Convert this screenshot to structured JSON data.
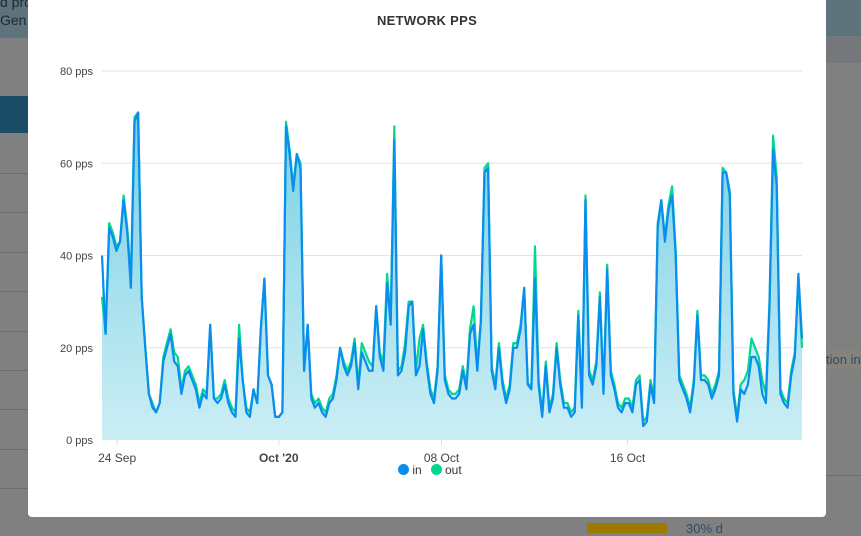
{
  "background": {
    "header_lines": [
      "d pro",
      "Gen"
    ],
    "right_text": "tion int",
    "bottom_text": "30% d"
  },
  "chart_data": {
    "type": "area",
    "title": "NETWORK PPS",
    "xlabel": "",
    "ylabel": "",
    "ylim": [
      0,
      80
    ],
    "xlim_days": [
      0,
      30.1
    ],
    "y_ticks": [
      {
        "value": 0,
        "label": "0 pps"
      },
      {
        "value": 20,
        "label": "20 pps"
      },
      {
        "value": 40,
        "label": "40 pps"
      },
      {
        "value": 60,
        "label": "60 pps"
      },
      {
        "value": 80,
        "label": "80 pps"
      }
    ],
    "x_ticks": [
      {
        "day": 0.65,
        "label": "24 Sep",
        "bold": false
      },
      {
        "day": 7.6,
        "label": "Oct '20",
        "bold": true
      },
      {
        "day": 14.6,
        "label": "08 Oct",
        "bold": false
      },
      {
        "day": 22.6,
        "label": "16 Oct",
        "bold": false
      }
    ],
    "grid": true,
    "legend_position": "bottom-center",
    "series": [
      {
        "name": "out",
        "color": "#00d98b",
        "values": [
          31,
          23,
          47,
          45,
          42,
          43,
          53,
          46,
          35,
          70,
          71,
          31,
          20,
          10,
          8,
          6,
          8,
          18,
          21,
          24,
          19,
          18,
          11,
          15,
          16,
          14,
          12,
          8,
          11,
          10,
          25,
          9,
          9,
          10,
          13,
          9,
          7,
          6,
          25,
          13,
          7,
          6,
          11,
          8,
          24,
          35,
          14,
          12,
          5,
          5,
          6,
          69,
          63,
          55,
          62,
          60,
          15,
          25,
          10,
          8,
          9,
          7,
          6,
          9,
          10,
          14,
          20,
          17,
          15,
          17,
          22,
          12,
          21,
          19,
          17,
          16,
          29,
          19,
          17,
          36,
          26,
          68,
          15,
          16,
          21,
          30,
          30,
          15,
          22,
          25,
          17,
          11,
          9,
          16,
          40,
          14,
          11,
          10,
          10,
          11,
          16,
          12,
          24,
          29,
          16,
          26,
          59,
          60,
          16,
          12,
          21,
          13,
          9,
          12,
          21,
          21,
          25,
          33,
          12,
          12,
          42,
          13,
          6,
          17,
          7,
          10,
          21,
          13,
          8,
          8,
          6,
          7,
          28,
          8,
          53,
          15,
          13,
          17,
          32,
          11,
          38,
          15,
          12,
          8,
          7,
          9,
          9,
          7,
          13,
          14,
          4,
          5,
          13,
          9,
          47,
          52,
          44,
          51,
          55,
          41,
          14,
          12,
          10,
          7,
          13,
          28,
          14,
          14,
          13,
          10,
          12,
          15,
          59,
          58,
          54,
          11,
          5,
          12,
          13,
          15,
          22,
          20,
          18,
          13,
          10,
          30,
          66,
          57,
          11,
          9,
          8,
          15,
          19,
          35,
          20
        ]
      },
      {
        "name": "in",
        "color": "#0a8cf0",
        "values": [
          40,
          23,
          46,
          44,
          41,
          43,
          52,
          45,
          33,
          69,
          71,
          31,
          20,
          10,
          7,
          6,
          8,
          17,
          20,
          23,
          17,
          16,
          10,
          14,
          15,
          13,
          11,
          7,
          10,
          9,
          25,
          9,
          8,
          9,
          12,
          8,
          6,
          5,
          22,
          13,
          6,
          5,
          11,
          8,
          24,
          35,
          14,
          12,
          5,
          5,
          6,
          68,
          62,
          54,
          62,
          59,
          15,
          25,
          9,
          7,
          8,
          6,
          5,
          8,
          9,
          13,
          20,
          16,
          14,
          16,
          21,
          11,
          19,
          17,
          15,
          15,
          29,
          18,
          15,
          34,
          25,
          65,
          14,
          15,
          19,
          29,
          30,
          14,
          16,
          24,
          16,
          10,
          8,
          15,
          40,
          13,
          10,
          9,
          9,
          10,
          15,
          11,
          23,
          25,
          15,
          26,
          58,
          59,
          15,
          11,
          20,
          12,
          8,
          11,
          20,
          20,
          24,
          33,
          12,
          11,
          35,
          12,
          5,
          16,
          6,
          9,
          20,
          12,
          7,
          7,
          5,
          6,
          27,
          7,
          52,
          14,
          12,
          16,
          31,
          10,
          37,
          14,
          11,
          7,
          6,
          8,
          8,
          6,
          12,
          13,
          3,
          4,
          12,
          8,
          46,
          52,
          43,
          50,
          53,
          40,
          13,
          11,
          9,
          6,
          12,
          27,
          13,
          13,
          12,
          9,
          11,
          14,
          58,
          58,
          53,
          10,
          4,
          11,
          10,
          12,
          18,
          18,
          16,
          10,
          8,
          29,
          63,
          55,
          10,
          8,
          7,
          14,
          18,
          36,
          22
        ]
      }
    ]
  }
}
